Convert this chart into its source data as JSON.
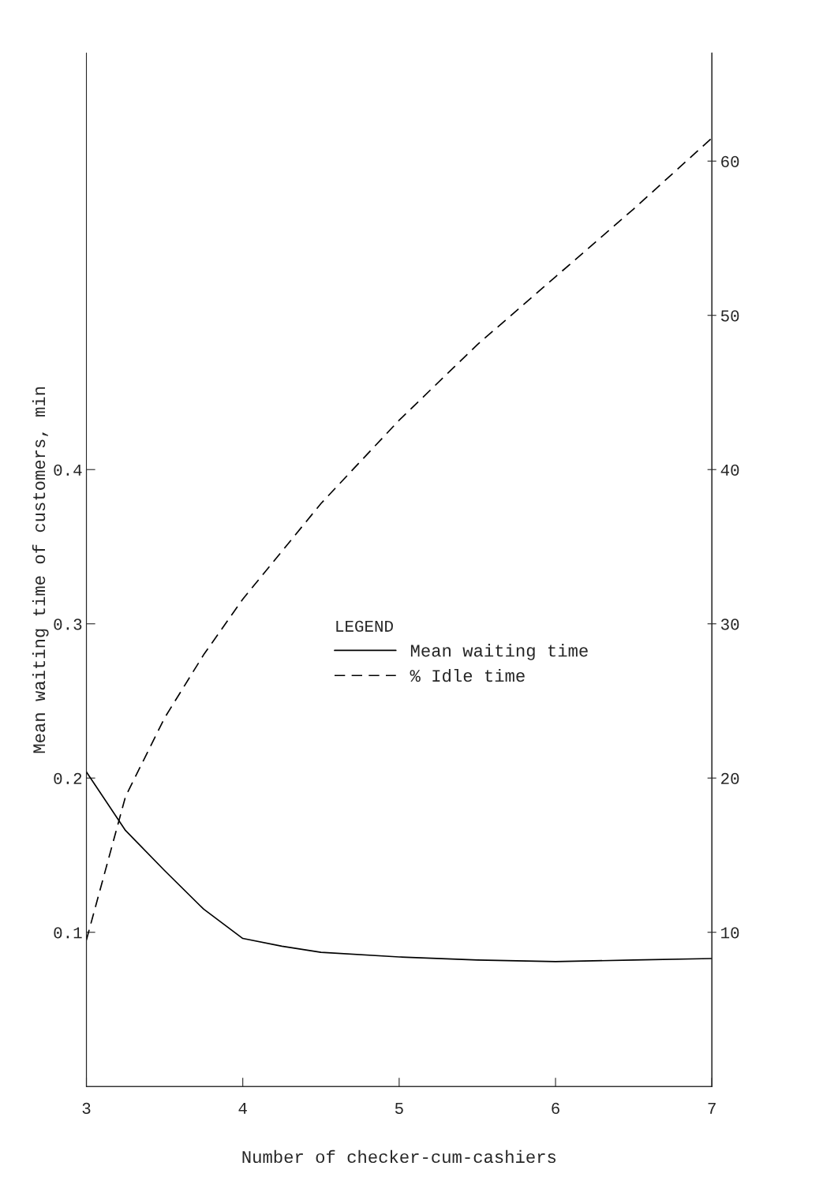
{
  "chart_data": {
    "type": "line",
    "xlabel": "Number of checker-cum-cashiers",
    "ylabel": "Mean waiting time of customers, min",
    "legend_title": "LEGEND",
    "legend": "center",
    "grid": false,
    "marker": "none",
    "x": [
      3,
      3.25,
      3.5,
      3.75,
      4,
      4.25,
      4.5,
      5,
      5.5,
      6,
      6.5,
      7
    ],
    "xlim": [
      3,
      7
    ],
    "xticks": [
      3,
      4,
      5,
      6,
      7
    ],
    "ylim": [
      0,
      0.67
    ],
    "yticks": [
      0.1,
      0.2,
      0.3,
      0.4
    ],
    "y2lim": [
      0,
      67
    ],
    "y2ticks": [
      10,
      20,
      30,
      40,
      50,
      60
    ],
    "series": [
      {
        "name": "Mean waiting time",
        "color": "#000000",
        "line_style": "solid",
        "values": [
          0.204,
          0.166,
          0.14,
          0.115,
          0.096,
          0.091,
          0.087,
          0.084,
          0.082,
          0.081,
          0.082,
          0.083
        ]
      },
      {
        "name": "% Idle time",
        "color": "#000000",
        "line_style": "dashed",
        "axis": "y2",
        "values": [
          9.5,
          18.8,
          23.9,
          28,
          31.6,
          34.7,
          37.8,
          43.2,
          48.1,
          52.5,
          56.9,
          61.5
        ]
      }
    ]
  }
}
